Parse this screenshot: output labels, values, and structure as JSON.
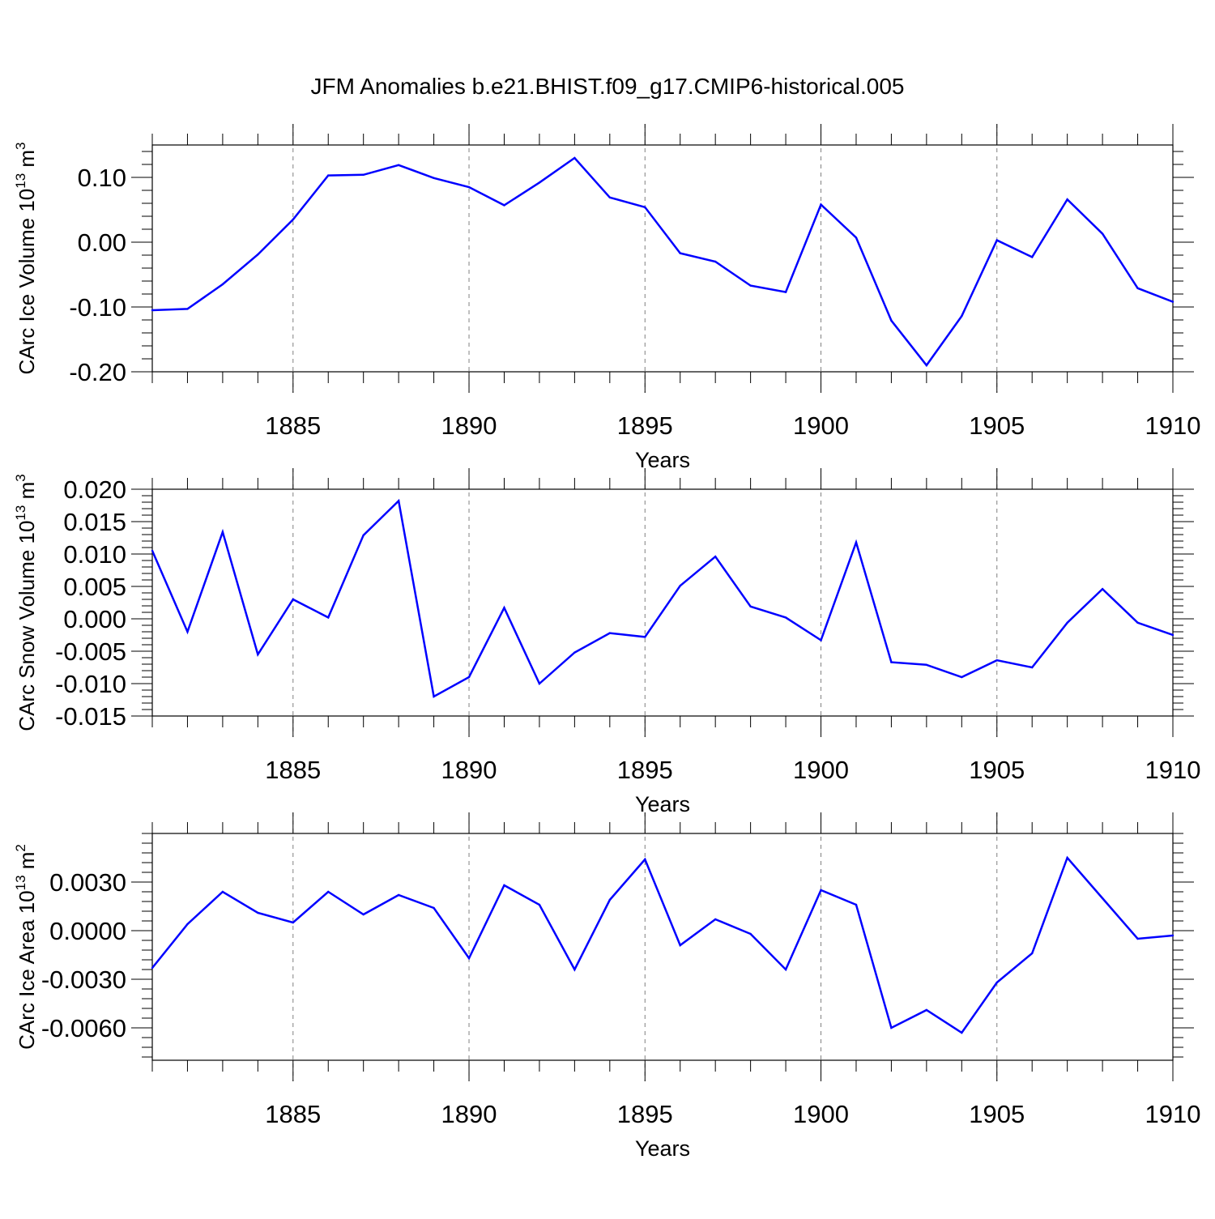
{
  "figure_title": "JFM Anomalies b.e21.BHIST.f09_g17.CMIP6-historical.005",
  "colors": {
    "line": "#0000ff",
    "axis": "#000000",
    "grid": "#808080"
  },
  "chart_data": [
    {
      "type": "line",
      "ylabel_main": "CArc Ice Volume 10",
      "ylabel_exp": "13",
      "ylabel_unit": " m",
      "ylabel_unit_exp": "3",
      "xlabel": "Years",
      "xlim": [
        1881,
        1910
      ],
      "ylim": [
        -0.2,
        0.15
      ],
      "yticks": [
        -0.2,
        -0.1,
        0.0,
        0.1
      ],
      "ytick_labels": [
        "-0.20",
        "-0.10",
        "0.00",
        "0.10"
      ],
      "yminor_step": 0.02,
      "xticks": [
        1885,
        1890,
        1895,
        1900,
        1905,
        1910
      ],
      "xtick_labels": [
        "1885",
        "1890",
        "1895",
        "1900",
        "1905",
        "1910"
      ],
      "x": [
        1881,
        1882,
        1883,
        1884,
        1885,
        1886,
        1887,
        1888,
        1889,
        1890,
        1891,
        1892,
        1893,
        1894,
        1895,
        1896,
        1897,
        1898,
        1899,
        1900,
        1901,
        1902,
        1903,
        1904,
        1905,
        1906,
        1907,
        1908,
        1909,
        1910
      ],
      "values": [
        -0.105,
        -0.103,
        -0.065,
        -0.019,
        0.035,
        0.103,
        0.104,
        0.119,
        0.099,
        0.085,
        0.057,
        0.092,
        0.13,
        0.069,
        0.054,
        -0.017,
        -0.03,
        -0.067,
        -0.077,
        0.058,
        0.007,
        -0.121,
        -0.19,
        -0.114,
        0.003,
        -0.023,
        0.066,
        0.013,
        -0.071,
        -0.092
      ]
    },
    {
      "type": "line",
      "ylabel_main": "CArc Snow Volume 10",
      "ylabel_exp": "13",
      "ylabel_unit": " m",
      "ylabel_unit_exp": "3",
      "xlabel": "Years",
      "xlim": [
        1881,
        1910
      ],
      "ylim": [
        -0.015,
        0.02
      ],
      "yticks": [
        -0.015,
        -0.01,
        -0.005,
        0.0,
        0.005,
        0.01,
        0.015,
        0.02
      ],
      "ytick_labels": [
        "-0.015",
        "-0.010",
        "-0.005",
        "0.000",
        "0.005",
        "0.010",
        "0.015",
        "0.020"
      ],
      "yminor_step": 0.001,
      "xticks": [
        1885,
        1890,
        1895,
        1900,
        1905,
        1910
      ],
      "xtick_labels": [
        "1885",
        "1890",
        "1895",
        "1900",
        "1905",
        "1910"
      ],
      "x": [
        1881,
        1882,
        1883,
        1884,
        1885,
        1886,
        1887,
        1888,
        1889,
        1890,
        1891,
        1892,
        1893,
        1894,
        1895,
        1896,
        1897,
        1898,
        1899,
        1900,
        1901,
        1902,
        1903,
        1904,
        1905,
        1906,
        1907,
        1908,
        1909,
        1910
      ],
      "values": [
        0.0105,
        -0.002,
        0.0134,
        -0.0055,
        0.003,
        0.0002,
        0.0129,
        0.0182,
        -0.012,
        -0.009,
        0.0017,
        -0.01,
        -0.0052,
        -0.0022,
        -0.0028,
        0.0051,
        0.0096,
        0.0019,
        0.0002,
        -0.0033,
        0.0118,
        -0.0067,
        -0.0071,
        -0.009,
        -0.0064,
        -0.0075,
        -0.0006,
        0.0046,
        -0.0006,
        -0.0025
      ]
    },
    {
      "type": "line",
      "ylabel_main": "CArc Ice Area 10",
      "ylabel_exp": "13",
      "ylabel_unit": " m",
      "ylabel_unit_exp": "2",
      "xlabel": "Years",
      "xlim": [
        1881,
        1910
      ],
      "ylim": [
        -0.008,
        0.006
      ],
      "yticks": [
        -0.006,
        -0.003,
        0.0,
        0.003
      ],
      "ytick_labels": [
        "-0.0060",
        "-0.0030",
        "0.0000",
        "0.0030"
      ],
      "yminor_step": 0.0006,
      "xticks": [
        1885,
        1890,
        1895,
        1900,
        1905,
        1910
      ],
      "xtick_labels": [
        "1885",
        "1890",
        "1895",
        "1900",
        "1905",
        "1910"
      ],
      "x": [
        1881,
        1882,
        1883,
        1884,
        1885,
        1886,
        1887,
        1888,
        1889,
        1890,
        1891,
        1892,
        1893,
        1894,
        1895,
        1896,
        1897,
        1898,
        1899,
        1900,
        1901,
        1902,
        1903,
        1904,
        1905,
        1906,
        1907,
        1908,
        1909,
        1910
      ],
      "values": [
        -0.0023,
        0.0004,
        0.0024,
        0.0011,
        0.0005,
        0.0024,
        0.001,
        0.0022,
        0.0014,
        -0.0017,
        0.0028,
        0.0016,
        -0.0024,
        0.0019,
        0.0044,
        -0.0009,
        0.0007,
        -0.0002,
        -0.0024,
        0.0025,
        0.0016,
        -0.006,
        -0.0049,
        -0.0063,
        -0.0032,
        -0.0014,
        0.0045,
        0.002,
        -0.0005,
        -0.0003
      ]
    }
  ]
}
